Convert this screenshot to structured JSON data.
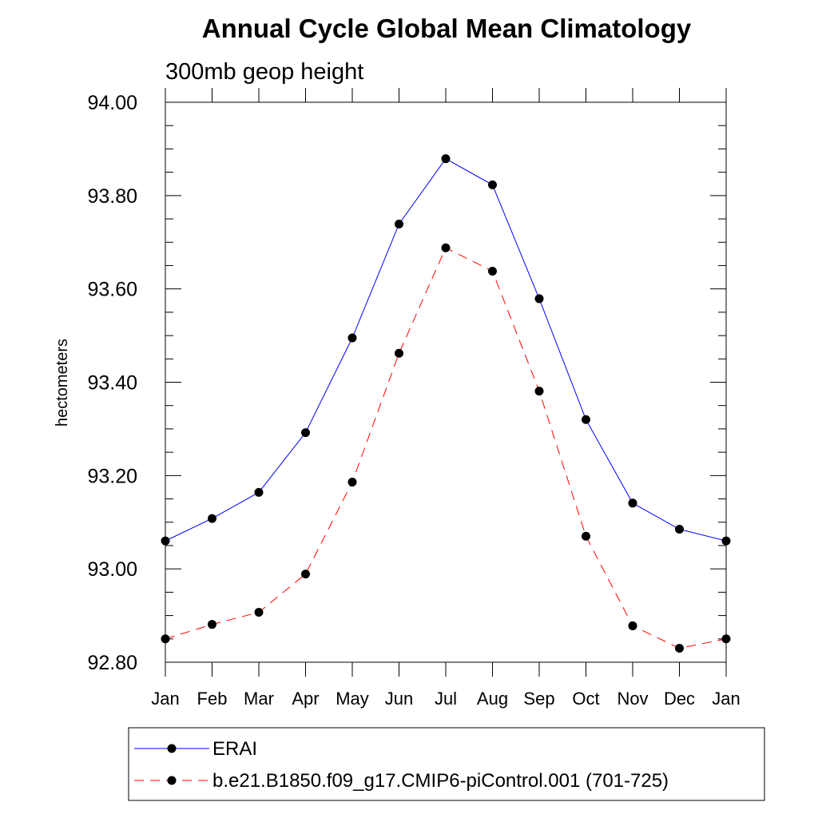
{
  "chart_data": {
    "type": "line",
    "title": "Annual Cycle Global Mean Climatology",
    "subtitle": "300mb geop height",
    "ylabel": "hectometers",
    "xlabel": "",
    "ylim": [
      92.8,
      94.0
    ],
    "yticks": [
      "94.00",
      "93.80",
      "93.60",
      "93.40",
      "93.20",
      "93.00",
      "92.80"
    ],
    "ytick_values": [
      94.0,
      93.8,
      93.6,
      93.4,
      93.2,
      93.0,
      92.8
    ],
    "categories": [
      "Jan",
      "Feb",
      "Mar",
      "Apr",
      "May",
      "Jun",
      "Jul",
      "Aug",
      "Sep",
      "Oct",
      "Nov",
      "Dec",
      "Jan"
    ],
    "grid": false,
    "legend_position": "bottom",
    "series": [
      {
        "name": "ERAI",
        "color": "#0000ff",
        "dash": "solid",
        "marker": "filled-circle",
        "values": [
          93.06,
          93.108,
          93.164,
          93.292,
          93.495,
          93.739,
          93.879,
          93.823,
          93.579,
          93.32,
          93.141,
          93.085,
          93.06
        ]
      },
      {
        "name": "b.e21.B1850.f09_g17.CMIP6-piControl.001 (701-725)",
        "color": "#ff0000",
        "dash": "dashed",
        "marker": "filled-circle",
        "values": [
          92.85,
          92.881,
          92.907,
          92.989,
          93.186,
          93.462,
          93.688,
          93.638,
          93.381,
          93.07,
          92.878,
          92.83,
          92.85
        ]
      }
    ]
  }
}
